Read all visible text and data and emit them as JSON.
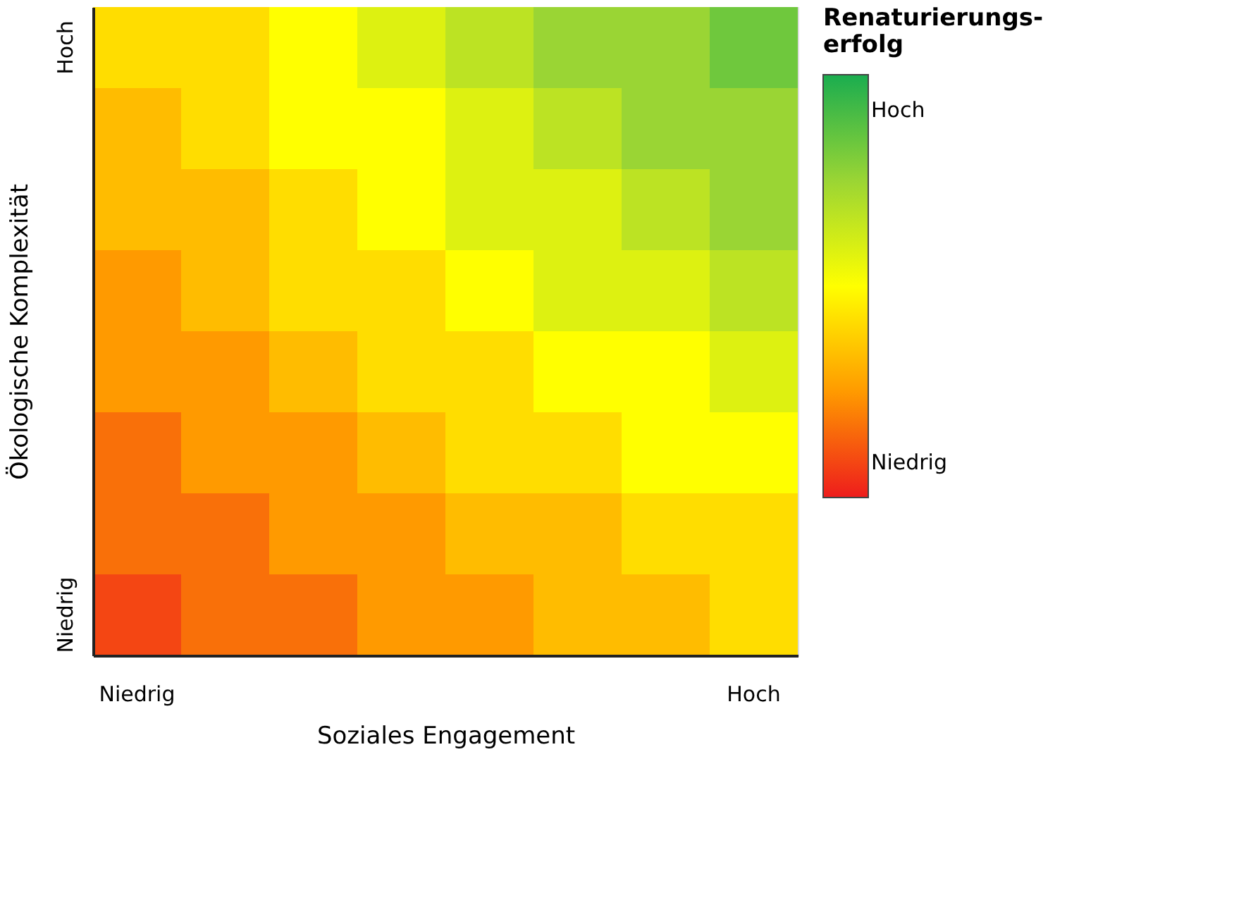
{
  "chart_data": {
    "type": "heatmap",
    "xlabel": "Soziales Engagement",
    "ylabel": "Ökologische Komplexität",
    "clabel": "Renaturierungs-erfolg",
    "categories": [
      "Niedrig",
      null,
      null,
      null,
      null,
      null,
      null,
      "Hoch"
    ],
    "y_categories": [
      "Hoch",
      null,
      null,
      null,
      null,
      null,
      null,
      "Niedrig"
    ],
    "cells": [
      [
        0.4,
        0.4,
        0.5,
        0.6,
        0.7,
        0.8,
        0.8,
        0.9
      ],
      [
        0.3,
        0.4,
        0.5,
        0.5,
        0.6,
        0.7,
        0.8,
        0.8
      ],
      [
        0.3,
        0.3,
        0.4,
        0.5,
        0.6,
        0.6,
        0.7,
        0.8
      ],
      [
        0.2,
        0.3,
        0.4,
        0.4,
        0.5,
        0.6,
        0.6,
        0.7
      ],
      [
        0.2,
        0.2,
        0.3,
        0.4,
        0.4,
        0.5,
        0.5,
        0.6
      ],
      [
        0.1,
        0.2,
        0.2,
        0.3,
        0.4,
        0.4,
        0.5,
        0.5
      ],
      [
        0.1,
        0.1,
        0.2,
        0.2,
        0.3,
        0.3,
        0.4,
        0.4
      ],
      [
        0.0,
        0.1,
        0.1,
        0.2,
        0.2,
        0.3,
        0.3,
        0.4
      ]
    ],
    "colors": [
      "#ee1c1c",
      "#ff9a00",
      "#ffff00",
      "#9ad534",
      "#1aad4f"
    ],
    "clim": [
      -0.1,
      1.1
    ],
    "cticks": [
      {
        "value": 0,
        "label": "Niedrig"
      },
      {
        "value": 1,
        "label": "Hoch"
      }
    ]
  }
}
